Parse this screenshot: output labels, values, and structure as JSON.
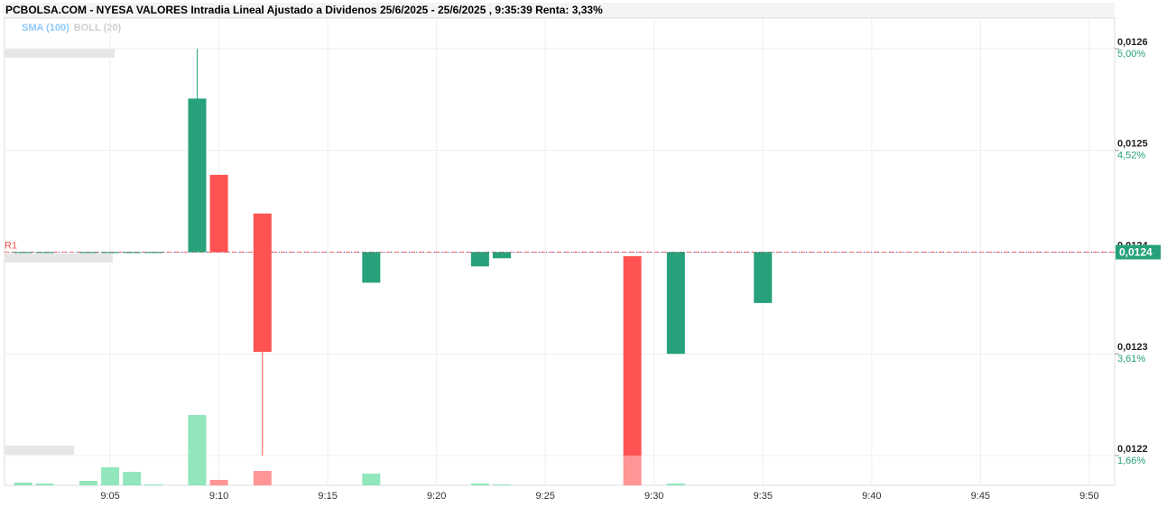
{
  "chart_data": {
    "type": "candlestick",
    "title": "PCBOLSA.COM - NYESA VALORES Intradia Lineal Ajustado a Dividenos 25/6/2025 - 25/6/2025 , 9:35:39 Renta: 3,33%",
    "legend": [
      {
        "name": "SMA (100)",
        "color": "#90caf9"
      },
      {
        "name": "BOLL (20)",
        "color": "#cfcfcf"
      }
    ],
    "up_color": "#26a17b",
    "down_color": "#ff5252",
    "volume_up_color": "#86e3b5",
    "volume_down_color": "#ff8a8a",
    "xlim": [
      "9:00",
      "9:51"
    ],
    "xticks": [
      "9:05",
      "9:10",
      "9:15",
      "9:20",
      "9:25",
      "9:30",
      "9:35",
      "9:40",
      "9:45",
      "9:50"
    ],
    "ylim": [
      0.0121707,
      0.0126302
    ],
    "yticks": [
      {
        "value": 0.0126,
        "label": "0,0126"
      },
      {
        "value": 0.0125,
        "label": "0,0125"
      },
      {
        "value": 0.0124,
        "label": "0,0124"
      },
      {
        "value": 0.0123,
        "label": "0,0123"
      },
      {
        "value": 0.0122,
        "label": "0,0122"
      }
    ],
    "percent_labels": [
      "5,00%",
      "4,52%",
      null,
      "3,61%",
      "1,66%"
    ],
    "volume_lim": [
      0,
      100
    ],
    "grid": true,
    "r1": {
      "label": "R1",
      "value": 0.0124
    },
    "last_price": {
      "value": 0.0124,
      "label": "0,0124"
    },
    "candles": [
      {
        "time": "9:01",
        "open": 0.0124,
        "high": 0.0124,
        "low": 0.0124,
        "close": 0.0124,
        "volume": 3
      },
      {
        "time": "9:02",
        "open": 0.0124,
        "high": 0.0124,
        "low": 0.0124,
        "close": 0.0124,
        "volume": 2
      },
      {
        "time": "9:04",
        "open": 0.0124,
        "high": 0.0124,
        "low": 0.0124,
        "close": 0.0124,
        "volume": 5
      },
      {
        "time": "9:05",
        "open": 0.0124,
        "high": 0.0124,
        "low": 0.0124,
        "close": 0.0124,
        "volume": 20
      },
      {
        "time": "9:06",
        "open": 0.0124,
        "high": 0.0124,
        "low": 0.0124,
        "close": 0.0124,
        "volume": 15
      },
      {
        "time": "9:07",
        "open": 0.0124,
        "high": 0.0124,
        "low": 0.0124,
        "close": 0.0124,
        "volume": 1
      },
      {
        "time": "9:09",
        "open": 0.0124,
        "high": 0.0126,
        "low": 0.0124,
        "close": 0.012551,
        "volume": 78
      },
      {
        "time": "9:10",
        "open": 0.012476,
        "high": 0.012476,
        "low": 0.0124,
        "close": 0.0124,
        "volume": 6
      },
      {
        "time": "9:12",
        "open": 0.012438,
        "high": 0.012438,
        "low": 0.0122,
        "close": 0.012302,
        "volume": 16
      },
      {
        "time": "9:17",
        "open": 0.01237,
        "high": 0.0124,
        "low": 0.01237,
        "close": 0.0124,
        "volume": 13
      },
      {
        "time": "9:22",
        "open": 0.012386,
        "high": 0.0124,
        "low": 0.012386,
        "close": 0.0124,
        "volume": 2
      },
      {
        "time": "9:23",
        "open": 0.012394,
        "high": 0.0124,
        "low": 0.012394,
        "close": 0.0124,
        "volume": 1
      },
      {
        "time": "9:29",
        "open": 0.012396,
        "high": 0.012396,
        "low": 0.0122,
        "close": 0.0122,
        "volume": 33
      },
      {
        "time": "9:31",
        "open": 0.0123,
        "high": 0.0124,
        "low": 0.0123,
        "close": 0.0124,
        "volume": 2
      },
      {
        "time": "9:35",
        "open": 0.01235,
        "high": 0.0124,
        "low": 0.01235,
        "close": 0.0124,
        "volume": 0
      }
    ]
  }
}
